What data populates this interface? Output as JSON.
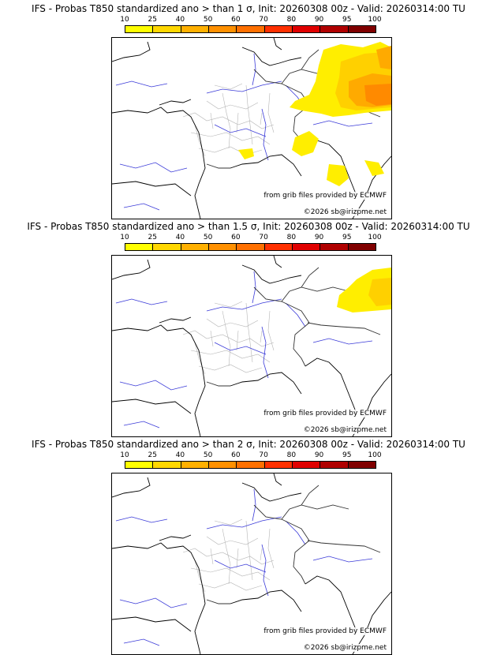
{
  "colorbar": {
    "ticks": [
      "10",
      "25",
      "40",
      "50",
      "60",
      "70",
      "80",
      "90",
      "95",
      "100"
    ],
    "colors": [
      "#ffff00",
      "#ffd700",
      "#ffb000",
      "#ff9000",
      "#ff7000",
      "#ff3000",
      "#e00000",
      "#b00000",
      "#800000"
    ]
  },
  "panels": [
    {
      "title": "IFS - Probas T850  standardized ano > than 1 σ, Init: 20260308 00z - Valid: 20260314:00 TU",
      "credit_grib": "from grib files provided by ECMWF",
      "credit_site": "©2026 sb@irizpme.net"
    },
    {
      "title": "IFS - Probas T850  standardized ano > than 1.5 σ, Init: 20260308 00z - Valid: 20260314:00 TU",
      "credit_grib": "from grib files provided by ECMWF",
      "credit_site": "©2026 sb@irizpme.net"
    },
    {
      "title": "IFS - Probas T850  standardized ano > than 2 σ, Init: 20260308 00z - Valid: 20260314:00 TU",
      "credit_grib": "from grib files provided by ECMWF",
      "credit_site": "©2026 sb@irizpme.net"
    }
  ]
}
